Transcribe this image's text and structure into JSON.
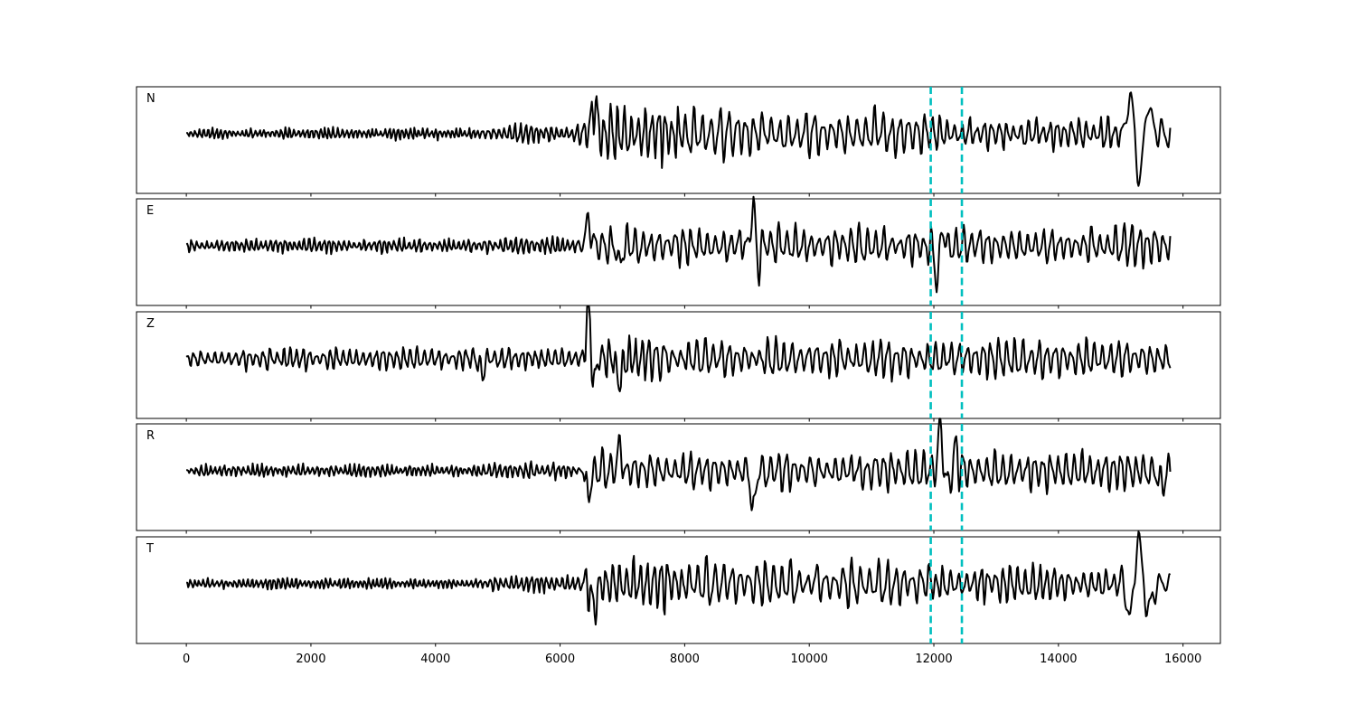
{
  "chart_data": {
    "type": "line",
    "title": "",
    "xlabel": "",
    "ylabel": "",
    "xlim": [
      -800,
      16600
    ],
    "x_ticks": [
      0,
      2000,
      4000,
      6000,
      8000,
      10000,
      12000,
      14000,
      16000
    ],
    "x_tick_labels": [
      "0",
      "2000",
      "4000",
      "6000",
      "8000",
      "10000",
      "12000",
      "14000",
      "16000"
    ],
    "samples": 15800,
    "grid": false,
    "legend": "none",
    "trace_color": "#000000",
    "marker_color": "#00bfbf",
    "vertical_markers": [
      11950,
      12450
    ],
    "series": [
      {
        "name": "N",
        "segments": [
          {
            "start": 0,
            "end": 4700,
            "amp": 0.09,
            "period": 70
          },
          {
            "start": 4700,
            "end": 6300,
            "amp": 0.16,
            "period": 85
          },
          {
            "start": 6300,
            "end": 8000,
            "amp": 0.45,
            "period": 110
          },
          {
            "start": 8000,
            "end": 11900,
            "amp": 0.38,
            "period": 140
          },
          {
            "start": 11900,
            "end": 15000,
            "amp": 0.28,
            "period": 120
          },
          {
            "start": 15000,
            "end": 15800,
            "amp": 0.25,
            "period": 160
          }
        ],
        "events": [
          {
            "x": 6550,
            "amp": 0.55,
            "width": 60
          },
          {
            "x": 15150,
            "amp": 0.75,
            "width": 60
          },
          {
            "x": 15300,
            "amp": -0.95,
            "width": 60
          },
          {
            "x": 15450,
            "amp": 0.55,
            "width": 70
          }
        ]
      },
      {
        "name": "E",
        "segments": [
          {
            "start": 0,
            "end": 4700,
            "amp": 0.12,
            "period": 80
          },
          {
            "start": 4700,
            "end": 6300,
            "amp": 0.14,
            "period": 85
          },
          {
            "start": 6300,
            "end": 15800,
            "amp": 0.32,
            "period": 130
          }
        ],
        "events": [
          {
            "x": 6450,
            "amp": 0.6,
            "width": 45
          },
          {
            "x": 6950,
            "amp": -0.35,
            "width": 50
          },
          {
            "x": 9100,
            "amp": 0.85,
            "width": 45
          },
          {
            "x": 9180,
            "amp": -0.4,
            "width": 45
          },
          {
            "x": 12050,
            "amp": -0.75,
            "width": 50
          },
          {
            "x": 12130,
            "amp": 0.35,
            "width": 50
          }
        ]
      },
      {
        "name": "Z",
        "segments": [
          {
            "start": 0,
            "end": 6300,
            "amp": 0.18,
            "period": 110
          },
          {
            "start": 6300,
            "end": 7500,
            "amp": 0.35,
            "period": 110
          },
          {
            "start": 7500,
            "end": 15800,
            "amp": 0.3,
            "period": 130
          }
        ],
        "events": [
          {
            "x": 4750,
            "amp": -0.35,
            "width": 45
          },
          {
            "x": 6450,
            "amp": 1.0,
            "width": 45
          },
          {
            "x": 6550,
            "amp": -0.45,
            "width": 45
          },
          {
            "x": 6950,
            "amp": -0.5,
            "width": 50
          }
        ]
      },
      {
        "name": "R",
        "segments": [
          {
            "start": 0,
            "end": 4700,
            "amp": 0.1,
            "period": 75
          },
          {
            "start": 4700,
            "end": 6300,
            "amp": 0.13,
            "period": 85
          },
          {
            "start": 6300,
            "end": 15800,
            "amp": 0.32,
            "period": 130
          }
        ],
        "events": [
          {
            "x": 6450,
            "amp": -0.55,
            "width": 45
          },
          {
            "x": 6950,
            "amp": 0.5,
            "width": 45
          },
          {
            "x": 9100,
            "amp": -0.85,
            "width": 45
          },
          {
            "x": 12100,
            "amp": 0.95,
            "width": 45
          },
          {
            "x": 12230,
            "amp": -0.35,
            "width": 45
          },
          {
            "x": 12350,
            "amp": 0.45,
            "width": 45
          },
          {
            "x": 15650,
            "amp": -0.3,
            "width": 60
          }
        ]
      },
      {
        "name": "T",
        "segments": [
          {
            "start": 0,
            "end": 4700,
            "amp": 0.09,
            "period": 70
          },
          {
            "start": 4700,
            "end": 6300,
            "amp": 0.14,
            "period": 85
          },
          {
            "start": 6300,
            "end": 8000,
            "amp": 0.45,
            "period": 110
          },
          {
            "start": 8000,
            "end": 11900,
            "amp": 0.38,
            "period": 140
          },
          {
            "start": 11900,
            "end": 15000,
            "amp": 0.28,
            "period": 120
          },
          {
            "start": 15000,
            "end": 15800,
            "amp": 0.25,
            "period": 160
          }
        ],
        "events": [
          {
            "x": 6550,
            "amp": -0.5,
            "width": 60
          },
          {
            "x": 15150,
            "amp": -0.75,
            "width": 60
          },
          {
            "x": 15280,
            "amp": 1.0,
            "width": 60
          },
          {
            "x": 15450,
            "amp": -0.55,
            "width": 70
          }
        ]
      }
    ]
  }
}
